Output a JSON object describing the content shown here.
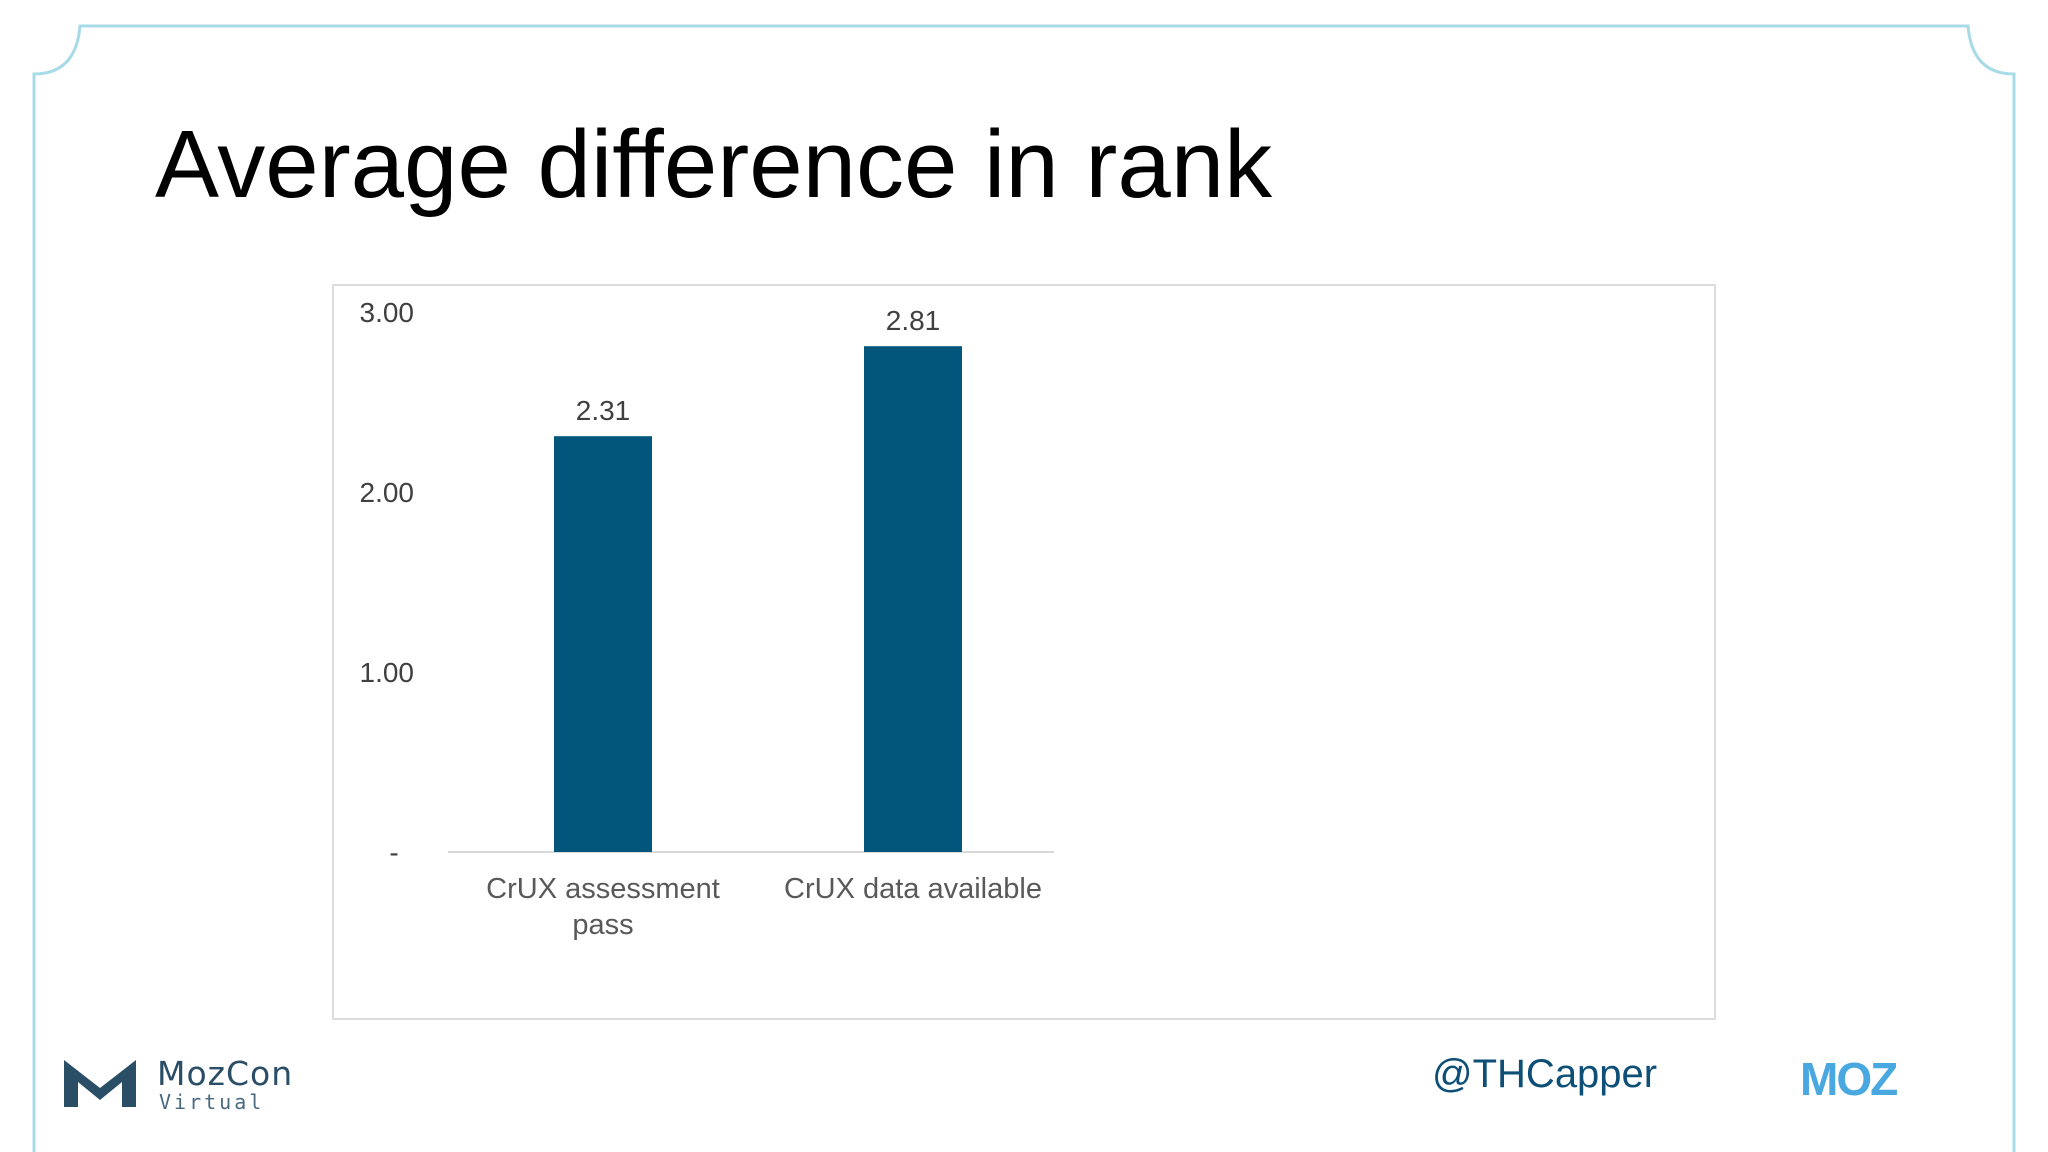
{
  "slide": {
    "title": "Average difference in rank",
    "handle": "@THCapper",
    "footer_left": {
      "name": "MozCon",
      "sub": "Virtual"
    },
    "footer_right": "MOZ",
    "colors": {
      "frame": "#a8dbe8",
      "bar": "#02567b",
      "moz_logo": "#4aa8e0",
      "mozcon_logo": "#2a4e66"
    }
  },
  "chart_data": {
    "type": "bar",
    "title": "",
    "xlabel": "",
    "ylabel": "",
    "categories": [
      "CrUX assessment pass",
      "CrUX data available"
    ],
    "category_lines": [
      [
        "CrUX assessment",
        "pass"
      ],
      [
        "CrUX data available"
      ]
    ],
    "values": [
      2.31,
      2.81
    ],
    "value_labels": [
      "2.31",
      "2.81"
    ],
    "ylim": [
      0,
      3
    ],
    "yticks": [
      0,
      1,
      2,
      3
    ],
    "ytick_labels": [
      "-",
      "1.00",
      "2.00",
      "3.00"
    ],
    "grid": false,
    "legend": "none"
  }
}
